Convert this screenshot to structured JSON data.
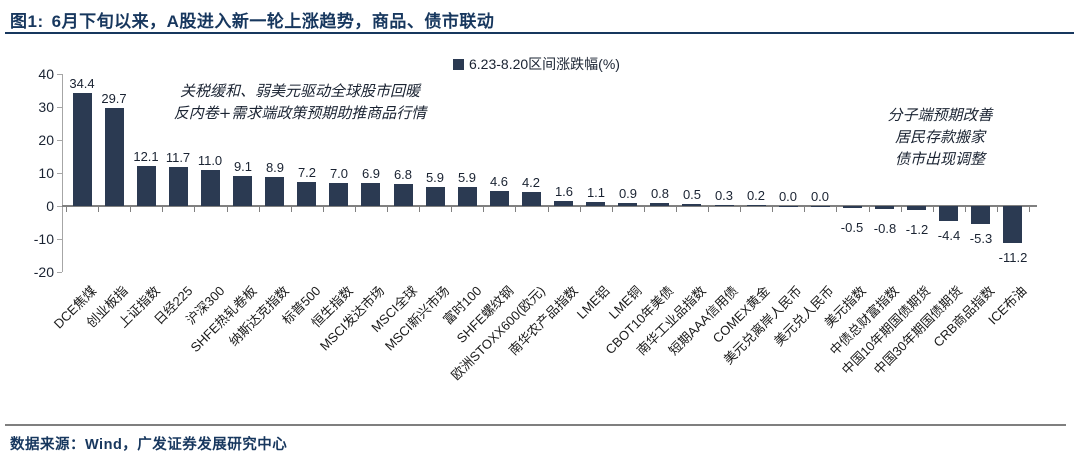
{
  "header": {
    "figure_label": "图1:",
    "title": "6月下旬以来，A股进入新一轮上涨趋势，商品、债市联动"
  },
  "chart_data": {
    "type": "bar",
    "title": "6月下旬以来，A股进入新一轮上涨趋势，商品、债市联动",
    "legend": "6.23-8.20区间涨跌幅(%)",
    "legend_position": "top-center",
    "grid": false,
    "ylim": [
      -20,
      40
    ],
    "yticks": [
      40,
      30,
      20,
      10,
      0,
      -10,
      -20
    ],
    "categories": [
      "DCE焦煤",
      "创业板指",
      "上证指数",
      "日经225",
      "沪深300",
      "SHFE热轧卷板",
      "纳斯达克指数",
      "标普500",
      "恒生指数",
      "MSCI发达市场",
      "MSCI全球",
      "MSCI新兴市场",
      "富时100",
      "SHFE螺纹钢",
      "欧洲STOXX600(欧元)",
      "南华农产品指数",
      "LME铝",
      "LME铜",
      "CBOT10年美债",
      "南华工业品指数",
      "短期AAA信用债",
      "COMEX黄金",
      "美元兑离岸人民币",
      "美元兑人民币",
      "美元指数",
      "中债总财富指数",
      "中国10年期国债期货",
      "中国30年期国债期货",
      "CRB商品指数",
      "ICE布油"
    ],
    "values": [
      34.4,
      29.7,
      12.1,
      11.7,
      11.0,
      9.1,
      8.9,
      7.2,
      7.0,
      6.9,
      6.8,
      5.9,
      5.9,
      4.6,
      4.2,
      1.6,
      1.1,
      0.9,
      0.8,
      0.5,
      0.3,
      0.2,
      0.0,
      0.0,
      -0.5,
      -0.8,
      -1.2,
      -4.4,
      -5.3,
      -11.2
    ],
    "bar_color": "#2b3a52",
    "annotations": [
      {
        "position": "left",
        "text": "关税缓和、弱美元驱动全球股市回暖\n反内卷+需求端政策预期助推商品行情"
      },
      {
        "position": "right",
        "text": "分子端预期改善\n居民存款搬家\n债市出现调整"
      }
    ]
  },
  "footer": {
    "source": "数据来源：Wind，广发证券发展研究中心"
  },
  "colors": {
    "accent": "#17375e",
    "bar": "#2b3a52",
    "axis_gray": "#808080",
    "text": "#1a2332"
  }
}
